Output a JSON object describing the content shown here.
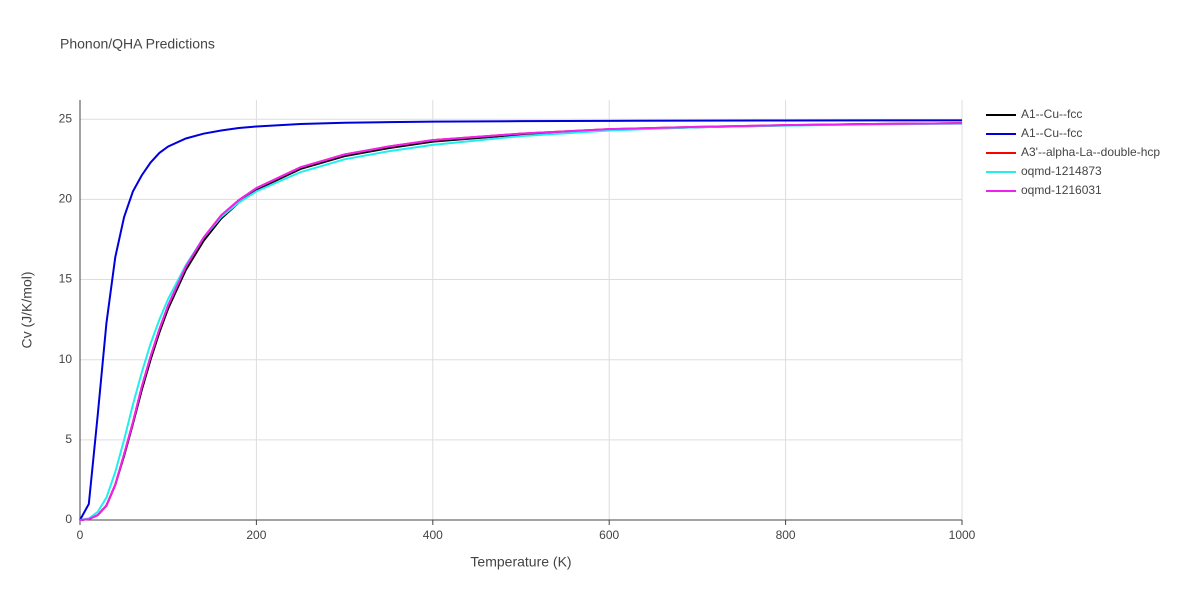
{
  "chart_data": {
    "type": "line",
    "title": "Phonon/QHA Predictions",
    "x_label": "Temperature (K)",
    "y_label": "Cv (J/K/mol)",
    "x": [
      0,
      10,
      20,
      30,
      40,
      50,
      60,
      70,
      80,
      90,
      100,
      120,
      140,
      160,
      180,
      200,
      250,
      300,
      350,
      400,
      500,
      600,
      700,
      800,
      900,
      1000
    ],
    "series": [
      {
        "name": "A1--Cu--fcc",
        "color": "#000000",
        "values": [
          0,
          0.05,
          0.3,
          0.9,
          2.2,
          4.0,
          6.0,
          8.1,
          10.0,
          11.7,
          13.2,
          15.6,
          17.4,
          18.8,
          19.8,
          20.6,
          21.9,
          22.7,
          23.2,
          23.6,
          24.05,
          24.35,
          24.5,
          24.62,
          24.7,
          24.75
        ]
      },
      {
        "name": "A1--Cu--fcc",
        "color": "#0000dd",
        "values": [
          0,
          1.0,
          6.5,
          12.3,
          16.4,
          18.9,
          20.5,
          21.5,
          22.3,
          22.9,
          23.3,
          23.8,
          24.1,
          24.3,
          24.45,
          24.55,
          24.7,
          24.78,
          24.82,
          24.85,
          24.88,
          24.9,
          24.91,
          24.92,
          24.93,
          24.93
        ]
      },
      {
        "name": "A3'--alpha-La--double-hcp",
        "color": "#ff0000",
        "values": [
          0,
          0.05,
          0.3,
          0.9,
          2.2,
          4.1,
          6.1,
          8.3,
          10.2,
          11.9,
          13.4,
          15.8,
          17.6,
          19.0,
          19.95,
          20.7,
          22.0,
          22.8,
          23.3,
          23.7,
          24.1,
          24.38,
          24.52,
          24.63,
          24.7,
          24.75
        ]
      },
      {
        "name": "oqmd-1214873",
        "color": "#22eeee",
        "values": [
          0,
          0.1,
          0.5,
          1.4,
          3.0,
          5.0,
          7.2,
          9.2,
          11.0,
          12.5,
          13.8,
          15.9,
          17.6,
          18.9,
          19.8,
          20.5,
          21.7,
          22.5,
          23.0,
          23.4,
          23.95,
          24.3,
          24.5,
          24.6,
          24.68,
          24.73
        ]
      },
      {
        "name": "oqmd-1216031",
        "color": "#ee22ee",
        "values": [
          0,
          0.05,
          0.3,
          0.9,
          2.2,
          4.1,
          6.1,
          8.3,
          10.2,
          11.9,
          13.4,
          15.8,
          17.6,
          19.0,
          19.95,
          20.7,
          22.0,
          22.8,
          23.3,
          23.7,
          24.1,
          24.38,
          24.52,
          24.63,
          24.7,
          24.75
        ]
      }
    ],
    "xlim": [
      0,
      1000
    ],
    "xticks": [
      0,
      200,
      400,
      600,
      800,
      1000
    ],
    "ylim": [
      0,
      26.2
    ],
    "yticks": [
      0,
      5,
      10,
      15,
      20,
      25
    ],
    "grid": true,
    "legend": "right"
  }
}
